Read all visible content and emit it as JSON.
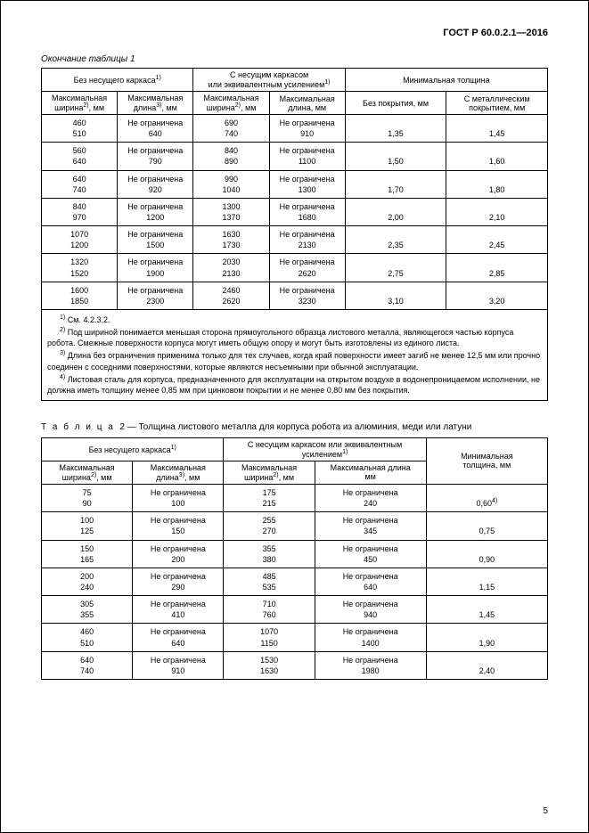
{
  "doc_id": "ГОСТ Р 60.0.2.1—2016",
  "page_number": "5",
  "table1": {
    "caption": "Окончание таблицы 1",
    "head_group1": "Без несущего каркаса",
    "head_group2_l1": "С несущим каркасом",
    "head_group2_l2": "или эквивалентным усилением",
    "head_group3": "Минимальная толщина",
    "sub_width_l1": "Максимальная",
    "sub_width_l2": "ширина",
    "sub_width_unit": ", мм",
    "sub_len_l1": "Максимальная",
    "sub_len_l2": "длина",
    "sub_len_unit": ", мм",
    "sub_nocov": "Без покрытия, мм",
    "sub_metcov_l1": "С металлическим",
    "sub_metcov_l2": "покрытием, мм",
    "rows": [
      {
        "w1a": "460",
        "w1b": "510",
        "l1a": "Не ограничена",
        "l1b": "640",
        "w2a": "690",
        "w2b": "740",
        "l2a": "Не ограничена",
        "l2b": "910",
        "t1": "1,35",
        "t2": "1,45"
      },
      {
        "w1a": "560",
        "w1b": "640",
        "l1a": "Не ограничена",
        "l1b": "790",
        "w2a": "840",
        "w2b": "890",
        "l2a": "Не ограничена",
        "l2b": "1100",
        "t1": "1,50",
        "t2": "1,60"
      },
      {
        "w1a": "640",
        "w1b": "740",
        "l1a": "Не ограничена",
        "l1b": "920",
        "w2a": "990",
        "w2b": "1040",
        "l2a": "Не ограничена",
        "l2b": "1300",
        "t1": "1,70",
        "t2": "1,80"
      },
      {
        "w1a": "840",
        "w1b": "970",
        "l1a": "Не ограничена",
        "l1b": "1200",
        "w2a": "1300",
        "w2b": "1370",
        "l2a": "Не ограничена",
        "l2b": "1680",
        "t1": "2,00",
        "t2": "2,10"
      },
      {
        "w1a": "1070",
        "w1b": "1200",
        "l1a": "Не ограничена",
        "l1b": "1500",
        "w2a": "1630",
        "w2b": "1730",
        "l2a": "Не ограничена",
        "l2b": "2130",
        "t1": "2,35",
        "t2": "2,45"
      },
      {
        "w1a": "1320",
        "w1b": "1520",
        "l1a": "Не ограничена",
        "l1b": "1900",
        "w2a": "2030",
        "w2b": "2130",
        "l2a": "Не ограничена",
        "l2b": "2620",
        "t1": "2,75",
        "t2": "2,85"
      },
      {
        "w1a": "1600",
        "w1b": "1850",
        "l1a": "Не ограничена",
        "l1b": "2300",
        "w2a": "2460",
        "w2b": "2620",
        "l2a": "Не ограничена",
        "l2b": "3230",
        "t1": "3,10",
        "t2": "3,20"
      }
    ],
    "note1": "См. 4.2.3.2.",
    "note2": "Под шириной понимается меньшая сторона прямоугольного образца листового металла, являющегося частью корпуса робота. Смежные поверхности корпуса могут иметь общую опору и могут быть изготовлены из единого листа.",
    "note3": "Длина без ограничения применима только для тех случаев, когда край поверхности имеет загиб не менее 12,5 мм или прочно соединен с соседними поверхностями, которые являются несъемными при обычной эксплуатации.",
    "note4": "Листовая сталь для корпуса, предназначенного для эксплуатации на открытом воздухе в водонепроницаемом исполнении, не должна иметь толщину менее 0,85 мм при цинковом покрытии и не менее 0,80 мм без покрытия."
  },
  "table2": {
    "caption_prefix": "Т а б л и ц а",
    "caption_num": "2",
    "caption_text": "— Толщина листового металла для корпуса робота из алюминия, меди или латуни",
    "head_group1": "Без несущего каркаса",
    "head_group2_l1": "С несущим каркасом или эквивалентным",
    "head_group2_l2": "усилением",
    "head_group3_l1": "Минимальная",
    "head_group3_l2": "толщина, мм",
    "sub_width_l1": "Максимальная",
    "sub_width_l2": "ширина",
    "sub_width_unit": ", мм",
    "sub_len_l1": "Максимальная",
    "sub_len_l2": "длина",
    "sub_len_unit": ", мм",
    "sub_len2_l1": "Максимальная длина",
    "sub_len2_l2": "мм",
    "rows": [
      {
        "w1a": "75",
        "w1b": "90",
        "l1a": "Не ограничена",
        "l1b": "100",
        "w2a": "175",
        "w2b": "215",
        "l2a": "Не ограничена",
        "l2b": "240",
        "t": "0,60",
        "sup": "4)"
      },
      {
        "w1a": "100",
        "w1b": "125",
        "l1a": "Не ограничена",
        "l1b": "150",
        "w2a": "255",
        "w2b": "270",
        "l2a": "Не ограничена",
        "l2b": "345",
        "t": "0,75",
        "sup": ""
      },
      {
        "w1a": "150",
        "w1b": "165",
        "l1a": "Не ограничена",
        "l1b": "200",
        "w2a": "355",
        "w2b": "380",
        "l2a": "Не ограничена",
        "l2b": "450",
        "t": "0,90",
        "sup": ""
      },
      {
        "w1a": "200",
        "w1b": "240",
        "l1a": "Не ограничена",
        "l1b": "290",
        "w2a": "485",
        "w2b": "535",
        "l2a": "Не ограничена",
        "l2b": "640",
        "t": "1,15",
        "sup": ""
      },
      {
        "w1a": "305",
        "w1b": "355",
        "l1a": "Не ограничена",
        "l1b": "410",
        "w2a": "710",
        "w2b": "760",
        "l2a": "Не ограничена",
        "l2b": "940",
        "t": "1,45",
        "sup": ""
      },
      {
        "w1a": "460",
        "w1b": "510",
        "l1a": "Не ограничена",
        "l1b": "640",
        "w2a": "1070",
        "w2b": "1150",
        "l2a": "Не ограничена",
        "l2b": "1400",
        "t": "1,90",
        "sup": ""
      },
      {
        "w1a": "640",
        "w1b": "740",
        "l1a": "Не ограничена",
        "l1b": "910",
        "w2a": "1530",
        "w2b": "1630",
        "l2a": "Не ограничена",
        "l2b": "1980",
        "t": "2,40",
        "sup": ""
      }
    ]
  }
}
